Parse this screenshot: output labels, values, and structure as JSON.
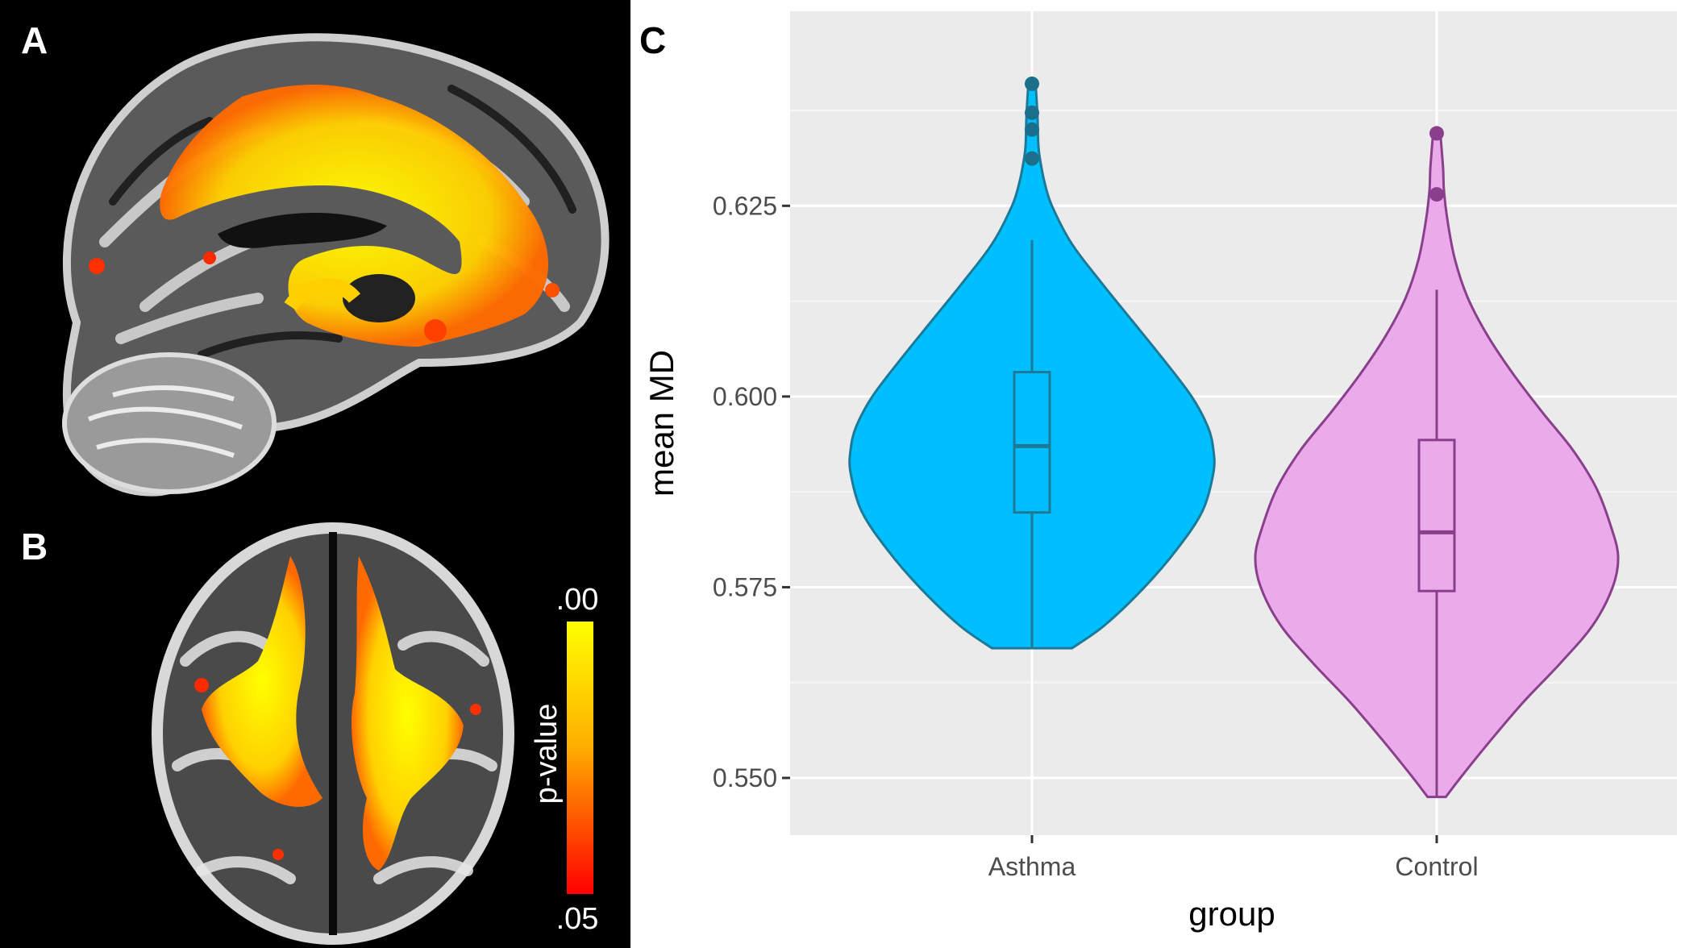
{
  "panels": {
    "a": "A",
    "b": "B",
    "c": "C"
  },
  "colorbar": {
    "label": "p-value",
    "top": ".00",
    "bottom": ".05",
    "colors": [
      "#ffff00",
      "#ff0000"
    ]
  },
  "chart_data": {
    "type": "violin",
    "title": "",
    "xlabel": "group",
    "ylabel": "mean MD",
    "categories": [
      "Asthma",
      "Control"
    ],
    "ylim": [
      0.5425,
      0.6505
    ],
    "yticks": [
      0.55,
      0.575,
      0.6,
      0.625
    ],
    "ytick_labels": [
      "0.550",
      "0.575",
      "0.600",
      "0.625"
    ],
    "grid": true,
    "series": [
      {
        "name": "Asthma",
        "fill": "#00bfff",
        "stroke": "#1c7a98",
        "point_color": "#1c6f8a",
        "violin_min": 0.567,
        "violin_max": 0.641,
        "density_y": [
          0.567,
          0.57,
          0.575,
          0.58,
          0.585,
          0.59,
          0.593,
          0.596,
          0.6,
          0.605,
          0.61,
          0.615,
          0.62,
          0.625,
          0.628,
          0.631,
          0.633,
          0.637,
          0.641
        ],
        "density_w": [
          0.22,
          0.4,
          0.62,
          0.8,
          0.94,
          1.0,
          1.0,
          0.97,
          0.88,
          0.72,
          0.55,
          0.38,
          0.22,
          0.11,
          0.07,
          0.045,
          0.035,
          0.03,
          0.02
        ],
        "box": {
          "whisker_low": 0.567,
          "q1": 0.5848,
          "median": 0.5935,
          "q3": 0.6032,
          "whisker_high": 0.6205
        },
        "outliers": [
          0.641,
          0.6372,
          0.635,
          0.6312
        ]
      },
      {
        "name": "Control",
        "fill": "#ebaaea",
        "stroke": "#8a3f8c",
        "point_color": "#8a3f8c",
        "violin_min": 0.5475,
        "violin_max": 0.6345,
        "density_y": [
          0.5475,
          0.55,
          0.555,
          0.56,
          0.565,
          0.57,
          0.575,
          0.579,
          0.583,
          0.588,
          0.593,
          0.598,
          0.603,
          0.608,
          0.613,
          0.618,
          0.623,
          0.627,
          0.63,
          0.6345
        ],
        "density_w": [
          0.05,
          0.13,
          0.3,
          0.48,
          0.68,
          0.86,
          0.97,
          1.0,
          0.96,
          0.88,
          0.75,
          0.58,
          0.42,
          0.28,
          0.17,
          0.1,
          0.06,
          0.04,
          0.035,
          0.02
        ],
        "box": {
          "whisker_low": 0.5475,
          "q1": 0.5745,
          "median": 0.5822,
          "q3": 0.5943,
          "whisker_high": 0.614
        },
        "outliers": [
          0.6345,
          0.6265
        ]
      }
    ]
  }
}
